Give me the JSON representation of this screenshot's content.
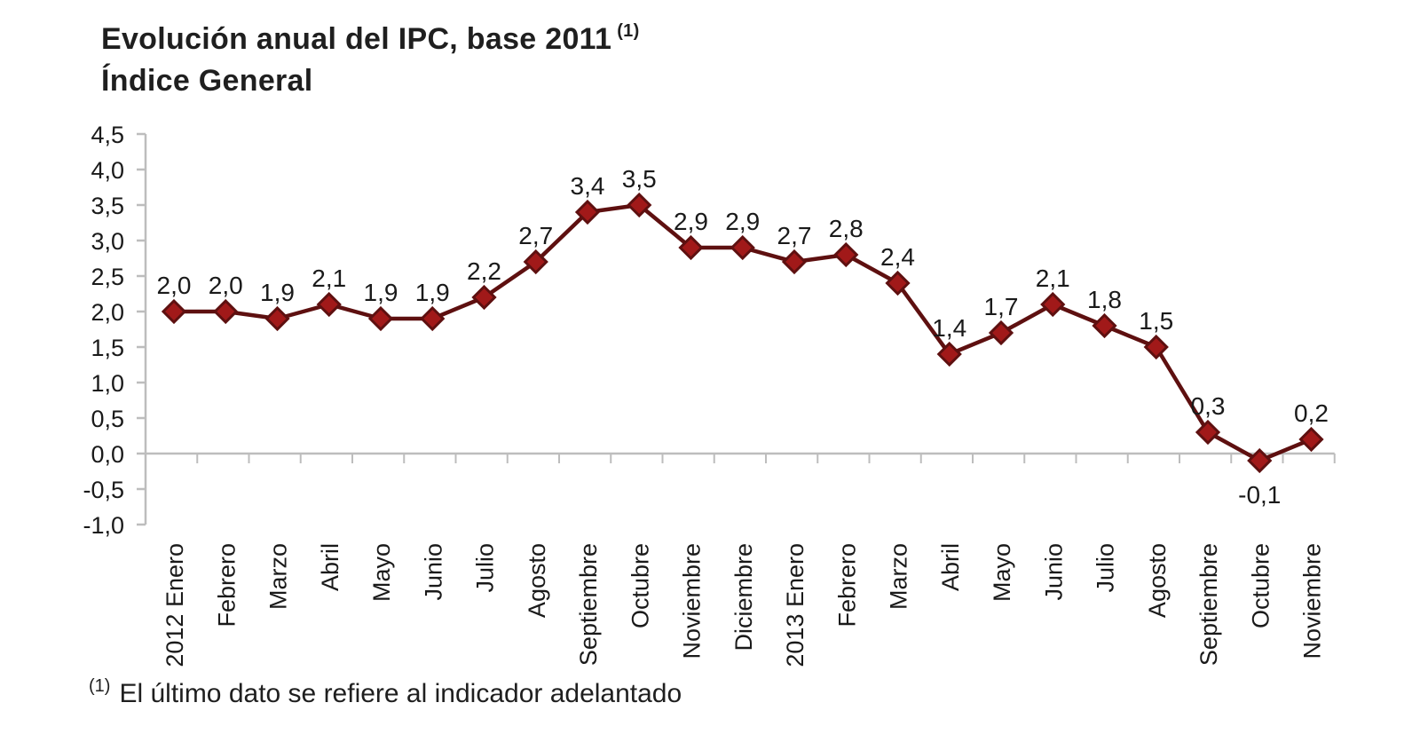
{
  "title": {
    "line1": "Evolución anual del IPC, base 2011",
    "sup": "(1)",
    "line2": "Índice General"
  },
  "footnote": {
    "sup": "(1)",
    "text": "El último dato se refiere al indicador adelantado"
  },
  "colors": {
    "line": "#5e1010",
    "marker_fill": "#a11919",
    "marker_stroke": "#5e1010",
    "axis": "#bdbdbd",
    "text": "#1a1a1a"
  },
  "chart_data": {
    "type": "line",
    "title": "Evolución anual del IPC, base 2011 (1) — Índice General",
    "categories": [
      "2012 Enero",
      "Febrero",
      "Marzo",
      "Abril",
      "Mayo",
      "Junio",
      "Julio",
      "Agosto",
      "Septiembre",
      "Octubre",
      "Noviembre",
      "Diciembre",
      "2013 Enero",
      "Febrero",
      "Marzo",
      "Abril",
      "Mayo",
      "Junio",
      "Julio",
      "Agosto",
      "Septiembre",
      "Octubre",
      "Noviembre"
    ],
    "values": [
      2.0,
      2.0,
      1.9,
      2.1,
      1.9,
      1.9,
      2.2,
      2.7,
      3.4,
      3.5,
      2.9,
      2.9,
      2.7,
      2.8,
      2.4,
      1.4,
      1.7,
      2.1,
      1.8,
      1.5,
      0.3,
      -0.1,
      0.2
    ],
    "point_labels": [
      "2,0",
      "2,0",
      "1,9",
      "2,1",
      "1,9",
      "1,9",
      "2,2",
      "2,7",
      "3,4",
      "3,5",
      "2,9",
      "2,9",
      "2,7",
      "2,8",
      "2,4",
      "1,4",
      "1,7",
      "2,1",
      "1,8",
      "1,5",
      "0,3",
      "-0,1",
      "0,2"
    ],
    "y_ticks": {
      "labels": [
        "4,5",
        "4,0",
        "3,5",
        "3,0",
        "2,5",
        "2,0",
        "1,5",
        "1,0",
        "0,5",
        "0,0",
        "-0,5",
        "-1,0"
      ],
      "values": [
        4.5,
        4.0,
        3.5,
        3.0,
        2.5,
        2.0,
        1.5,
        1.0,
        0.5,
        0.0,
        -0.5,
        -1.0
      ]
    },
    "ylim": [
      -1.0,
      4.5
    ],
    "xlabel": "",
    "ylabel": "",
    "grid": false,
    "legend": false,
    "marker": "diamond"
  }
}
